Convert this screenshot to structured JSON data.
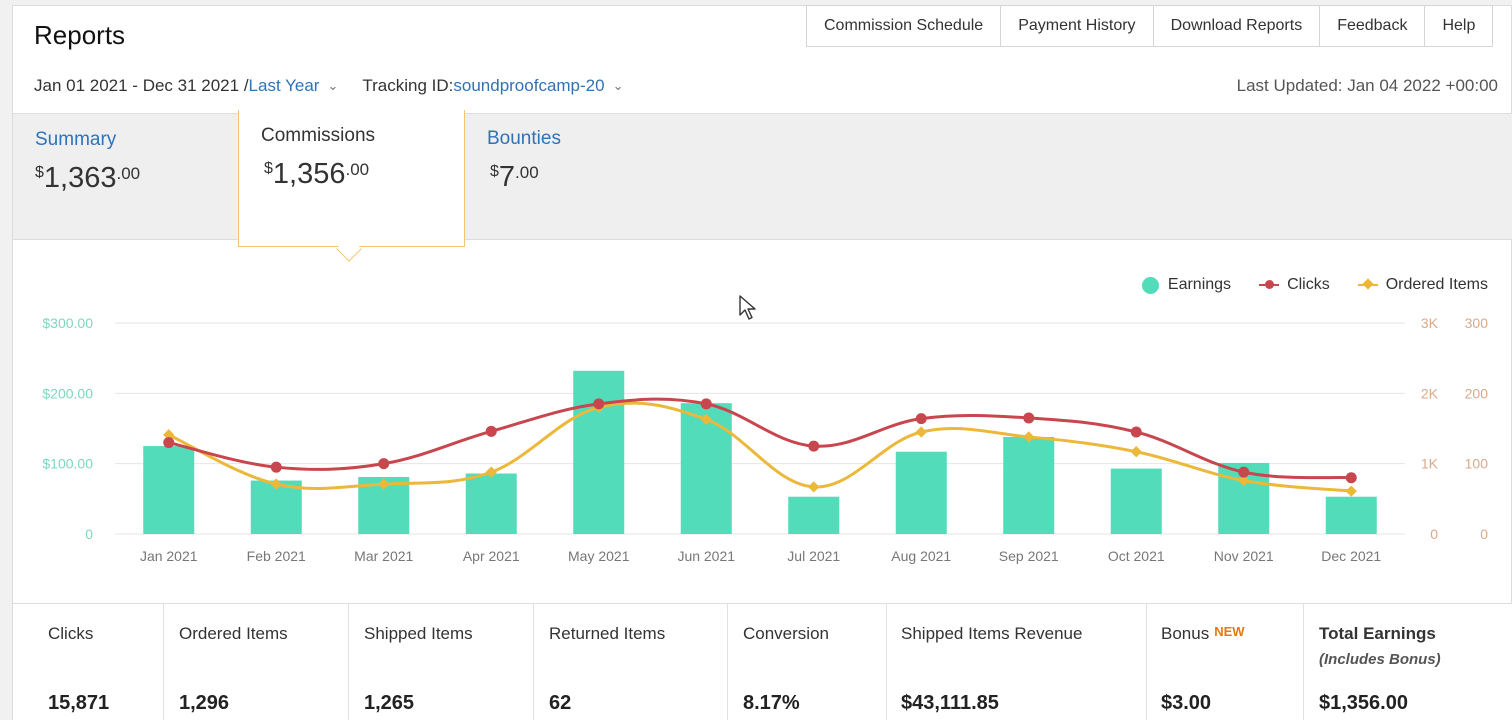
{
  "header": {
    "title": "Reports",
    "nav": [
      "Commission Schedule",
      "Payment History",
      "Download Reports",
      "Feedback",
      "Help"
    ]
  },
  "filters": {
    "date_range": "Jan 01 2021 - Dec 31 2021 / ",
    "period_label": "Last Year",
    "tracking_label": "Tracking ID: ",
    "tracking_id": "soundproofcamp-20",
    "last_updated": "Last Updated: Jan 04 2022 +00:00"
  },
  "tabs": [
    {
      "label": "Summary",
      "dollar": "$",
      "whole": "1,363",
      "cents": ".00",
      "active": false
    },
    {
      "label": "Commissions",
      "dollar": "$",
      "whole": "1,356",
      "cents": ".00",
      "active": true
    },
    {
      "label": "Bounties",
      "dollar": "$",
      "whole": "7",
      "cents": ".00",
      "active": false
    }
  ],
  "legend": {
    "earnings": "Earnings",
    "clicks": "Clicks",
    "ordered": "Ordered Items"
  },
  "colors": {
    "earnings": "#52dcb9",
    "clicks": "#c8464e",
    "ordered": "#ecb83a",
    "link": "#2f72b8",
    "accent_border": "#f0c674"
  },
  "chart_data": {
    "type": "bar",
    "categories": [
      "Jan 2021",
      "Feb 2021",
      "Mar 2021",
      "Apr 2021",
      "May 2021",
      "Jun 2021",
      "Jul 2021",
      "Aug 2021",
      "Sep 2021",
      "Oct 2021",
      "Nov 2021",
      "Dec 2021"
    ],
    "series": [
      {
        "name": "Earnings",
        "type": "bar",
        "axis": "left",
        "values": [
          125,
          76,
          81,
          86,
          232,
          186,
          53,
          117,
          138,
          93,
          101,
          53
        ]
      },
      {
        "name": "Clicks",
        "type": "line",
        "axis": "right1",
        "values": [
          1300,
          950,
          1000,
          1460,
          1850,
          1850,
          1250,
          1640,
          1650,
          1450,
          880,
          800
        ]
      },
      {
        "name": "Ordered Items",
        "type": "line",
        "axis": "right2",
        "values": [
          141,
          71,
          71,
          88,
          180,
          163,
          67,
          145,
          138,
          117,
          76,
          61
        ]
      }
    ],
    "axes": {
      "left": {
        "ticks": [
          "0",
          "$100.00",
          "$200.00",
          "$300.00"
        ],
        "range": [
          0,
          300
        ]
      },
      "right1": {
        "ticks": [
          "0",
          "1K",
          "2K",
          "3K"
        ],
        "range": [
          0,
          3000
        ]
      },
      "right2": {
        "ticks": [
          "0",
          "100",
          "200",
          "300"
        ],
        "range": [
          0,
          300
        ]
      }
    },
    "grid": true,
    "legend_position": "top-right"
  },
  "stats": [
    {
      "label": "Clicks",
      "value": "15,871"
    },
    {
      "label": "Ordered Items",
      "value": "1,296"
    },
    {
      "label": "Shipped Items",
      "value": "1,265"
    },
    {
      "label": "Returned Items",
      "value": "62"
    },
    {
      "label": "Conversion",
      "value": "8.17%"
    },
    {
      "label": "Shipped Items Revenue",
      "value": "$43,111.85"
    },
    {
      "label": "Bonus",
      "badge": "NEW",
      "value": "$3.00"
    },
    {
      "label": "Total Earnings",
      "sub": "(Includes Bonus)",
      "value": "$1,356.00"
    }
  ]
}
